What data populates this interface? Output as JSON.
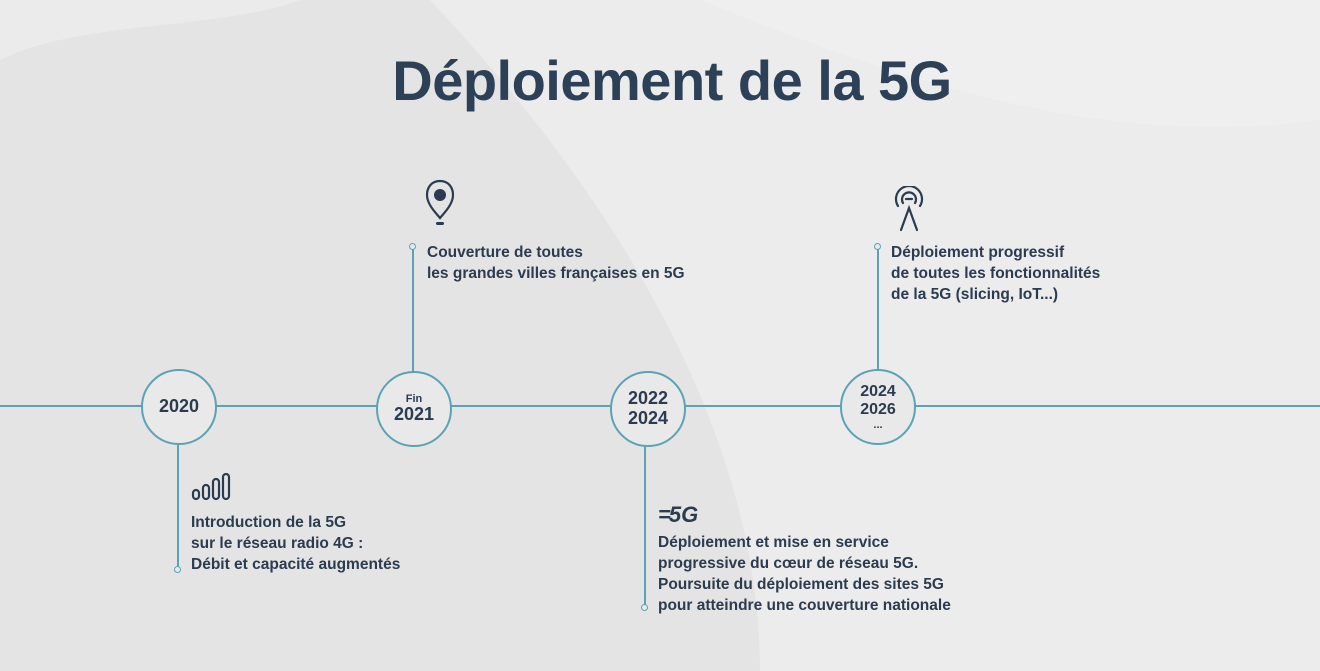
{
  "title": "Déploiement de la 5G",
  "colors": {
    "text": "#2b3b50",
    "line": "#5aa3b5",
    "background": "#e4e4e4"
  },
  "milestones": [
    {
      "date_line1": "",
      "date_line2": "2020",
      "icon": "signal-bars-icon",
      "lines": [
        "Introduction de la 5G",
        "sur le réseau radio 4G :",
        "Débit et capacité augmentés"
      ]
    },
    {
      "date_line1": "Fin",
      "date_line2": "2021",
      "icon": "location-pin-icon",
      "lines": [
        "Couverture de toutes",
        "les grandes villes françaises en 5G"
      ]
    },
    {
      "date_line1": "2022",
      "date_line2": "2024",
      "icon": "5g-core-icon",
      "icon_text": "5G",
      "lines": [
        "Déploiement et mise en service",
        "progressive du cœur de réseau 5G.",
        "Poursuite du déploiement des sites 5G",
        "pour atteindre une couverture nationale"
      ]
    },
    {
      "date_line1": "2024",
      "date_line2": "2026",
      "date_line3": "...",
      "icon": "antenna-icon",
      "lines": [
        "Déploiement progressif",
        "de toutes les fonctionnalités",
        "de la 5G (slicing, IoT...)"
      ]
    }
  ]
}
